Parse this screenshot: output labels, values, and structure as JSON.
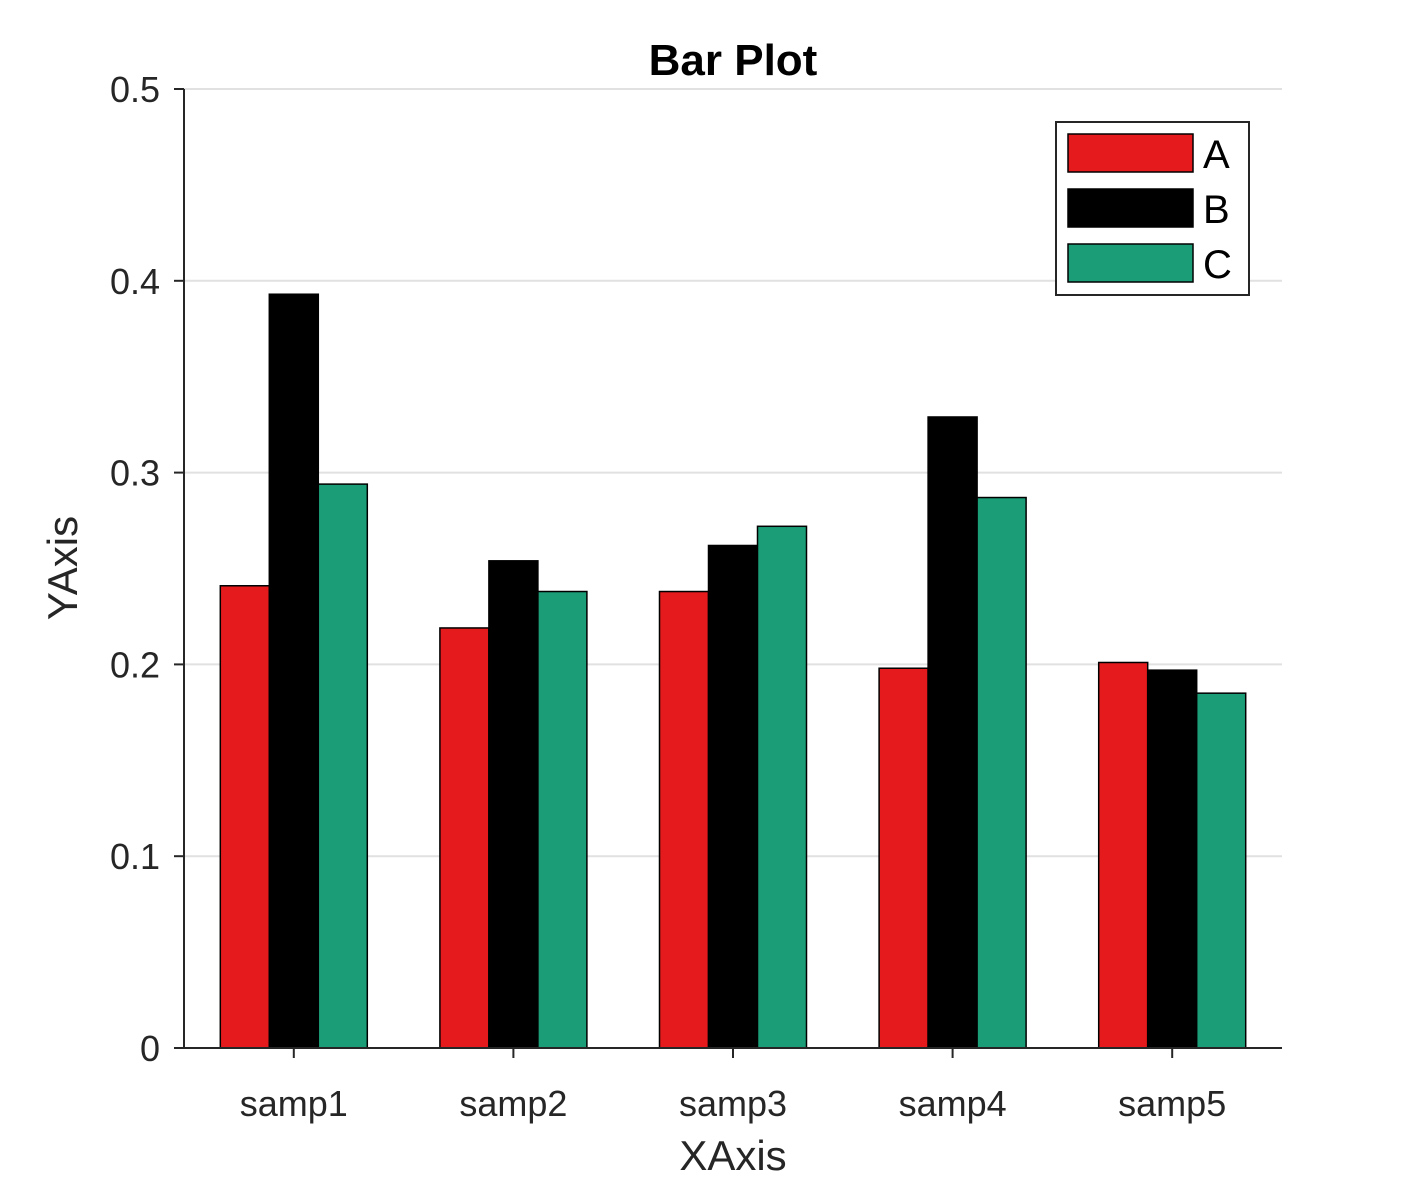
{
  "chart_data": {
    "type": "bar",
    "title": "Bar Plot",
    "xlabel": "XAxis",
    "ylabel": "YAxis",
    "categories": [
      "samp1",
      "samp2",
      "samp3",
      "samp4",
      "samp5"
    ],
    "series": [
      {
        "name": "A",
        "color": "#e41a1c",
        "values": [
          0.241,
          0.219,
          0.238,
          0.198,
          0.201
        ]
      },
      {
        "name": "B",
        "color": "#000000",
        "values": [
          0.393,
          0.254,
          0.262,
          0.329,
          0.197
        ]
      },
      {
        "name": "C",
        "color": "#1b9e77",
        "values": [
          0.294,
          0.238,
          0.272,
          0.287,
          0.185
        ]
      }
    ],
    "ylim": [
      0,
      0.5
    ],
    "yticks": [
      "0",
      "0.1",
      "0.2",
      "0.3",
      "0.4",
      "0.5"
    ],
    "grid": "horizontal",
    "legend_position": "top-right"
  }
}
